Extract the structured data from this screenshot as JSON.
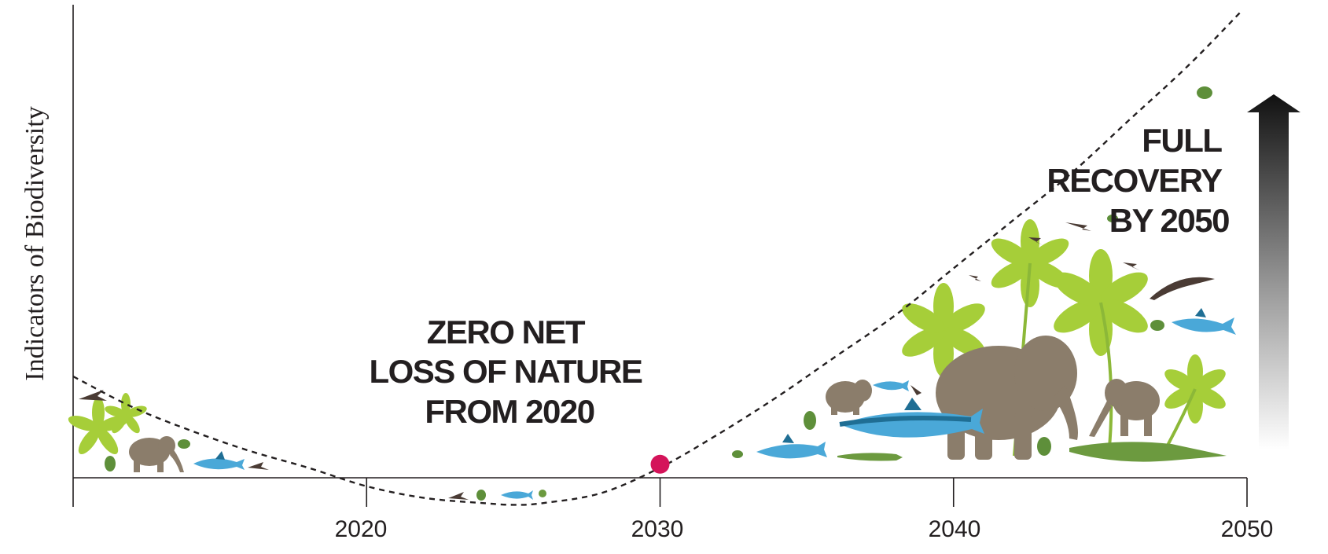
{
  "chart_data": {
    "type": "line",
    "title": "",
    "xlabel": "",
    "ylabel": "Indicators of Biodiversity",
    "xlim": [
      2010,
      2050
    ],
    "ylim": [
      -1,
      14
    ],
    "x_ticks": [
      "2020",
      "2030",
      "2040",
      "2050"
    ],
    "grid": false,
    "series": [
      {
        "x": [
          2010,
          2012,
          2014,
          2016,
          2018,
          2020,
          2022,
          2024,
          2025,
          2026,
          2028,
          2030,
          2032,
          2034,
          2036,
          2038,
          2040,
          2042,
          2044,
          2046,
          2048,
          2049.8
        ],
        "y": [
          3.0,
          2.1,
          1.4,
          0.8,
          0.3,
          -0.25,
          -0.6,
          -0.75,
          -0.8,
          -0.75,
          -0.45,
          0.3,
          1.3,
          2.4,
          3.6,
          4.8,
          6.2,
          7.6,
          9.0,
          10.6,
          12.2,
          13.8
        ]
      }
    ],
    "highlight_point": {
      "x": 2030,
      "y": 0.4,
      "color": "#d4145a"
    },
    "annotations": [
      {
        "lines": [
          "ZERO NET",
          "LOSS OF NATURE",
          "FROM 2020"
        ]
      },
      {
        "lines": [
          "FULL",
          "RECOVERY",
          "BY 2050"
        ]
      }
    ],
    "colors": {
      "axis": "#231f20",
      "leaf": "#a6ce39",
      "elephant": "#8b7d6b",
      "shark": "#4aa8d8",
      "shark_dark": "#1f6e94",
      "croc": "#6c9a3f",
      "frog": "#5e8f3a",
      "bird": "#4a3b34"
    },
    "icons": [
      "up-arrow-gradient-icon",
      "elephant-icon",
      "shark-icon",
      "crocodile-icon",
      "frog-icon",
      "bird-icon",
      "plant-icon"
    ]
  }
}
